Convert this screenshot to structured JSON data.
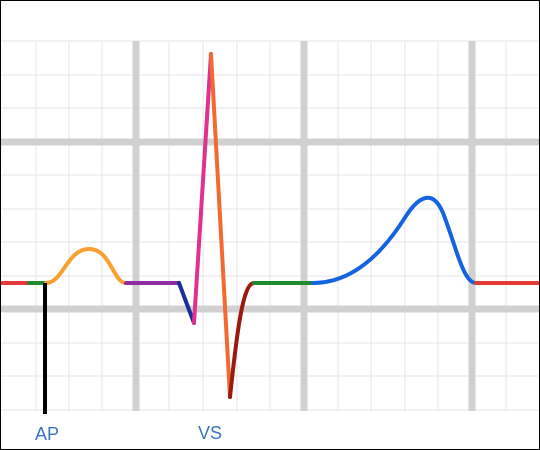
{
  "markers": [
    {
      "label": "AP"
    },
    {
      "label": "VS"
    }
  ]
}
